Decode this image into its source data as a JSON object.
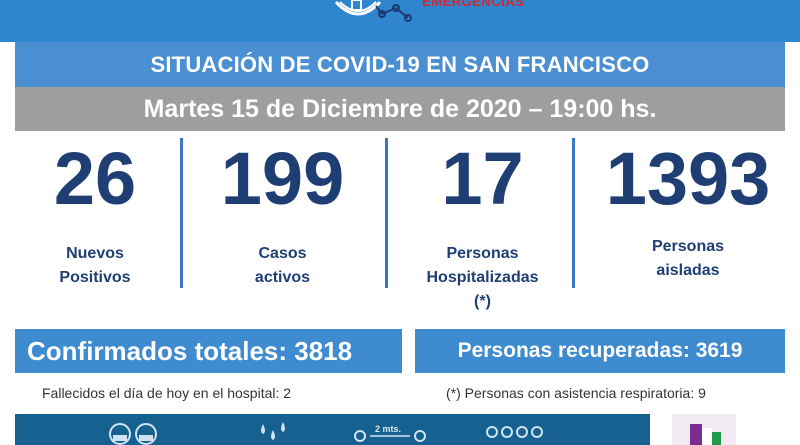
{
  "header": {
    "logo_word": "EMERGENCIAS"
  },
  "title": "SITUACIÓN DE COVID-19 EN SAN FRANCISCO",
  "date": "Martes 15 de Diciembre de 2020 – 19:00 hs.",
  "stats": [
    {
      "value": "26",
      "label_line1": "Nuevos",
      "label_line2": "Positivos",
      "label_line3": ""
    },
    {
      "value": "199",
      "label_line1": "Casos",
      "label_line2": "activos",
      "label_line3": ""
    },
    {
      "value": "17",
      "label_line1": "Personas",
      "label_line2": "Hospitalizadas",
      "label_line3": "(*)"
    },
    {
      "value": "1393",
      "label_line1": "Personas",
      "label_line2": "aisladas",
      "label_line3": ""
    }
  ],
  "totals": {
    "confirmed": "Confirmados totales: 3818",
    "recovered": "Personas recuperadas: 3619"
  },
  "notes": {
    "deaths": "Fallecidos el día de hoy en el hospital: 2",
    "respiratory": "(*) Personas con asistencia respiratoria: 9"
  },
  "bottom_strip": {
    "distance_text": "2 mts."
  },
  "icons": [
    "emergency-logo-icon",
    "mask-people-icon",
    "handwash-drops-icon",
    "distance-people-icon",
    "crowd-icon",
    "corner-logo-icon"
  ],
  "colors": {
    "top_band": "#2f86cf",
    "title_band": "#4a8fd2",
    "date_band": "#9e9e9e",
    "stat_text": "#1f3f74",
    "divider": "#3a78c2",
    "totals_box": "#3f8bd0",
    "bottom_strip": "#16618f"
  }
}
